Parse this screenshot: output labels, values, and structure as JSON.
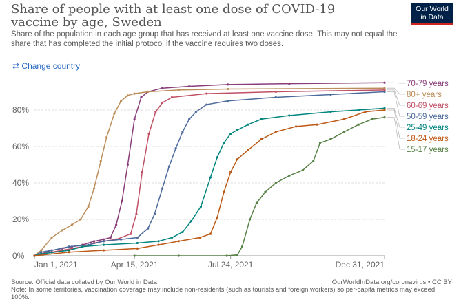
{
  "title": "Share of people with at least one dose of COVID-19 vaccine by age, Sweden",
  "subtitle": "Share of the population in each age group that has received at least one vaccine dose. This may not equal the share that has completed the initial protocol if the vaccine requires two doses.",
  "logo": [
    "Our World",
    "in Data"
  ],
  "change_country": "Change country",
  "change_icon": "swap-arrows-icon",
  "footer": {
    "source": "Source: Official data collated by Our World in Data",
    "url": "OurWorldInData.org/coronavirus • CC BY",
    "note": "Note: In some territories, vaccination coverage may include non-residents (such as tourists and foreign workers) so per-capita metrics may exceed 100%."
  },
  "chart_data": {
    "type": "line",
    "x_unit": "days since Jan 1, 2021",
    "xlim": [
      0,
      364
    ],
    "ylim": [
      0,
      100
    ],
    "x_ticks": [
      {
        "day": 0,
        "label": "Jan 1, 2021"
      },
      {
        "day": 104,
        "label": "Apr 15, 2021"
      },
      {
        "day": 204,
        "label": "Jul 24, 2021"
      },
      {
        "day": 364,
        "label": "Dec 31, 2021"
      }
    ],
    "y_ticks": [
      {
        "v": 0,
        "label": "0%"
      },
      {
        "v": 20,
        "label": "20%"
      },
      {
        "v": 40,
        "label": "40%"
      },
      {
        "v": 60,
        "label": "60%"
      },
      {
        "v": 80,
        "label": "80%"
      }
    ],
    "series": [
      {
        "name": "70-79 years",
        "color": "#883d7a",
        "points": [
          [
            0,
            0
          ],
          [
            7,
            1
          ],
          [
            18,
            3
          ],
          [
            29,
            4
          ],
          [
            39,
            5
          ],
          [
            50,
            6
          ],
          [
            62,
            8
          ],
          [
            72,
            9
          ],
          [
            79,
            10
          ],
          [
            85,
            17
          ],
          [
            91,
            30
          ],
          [
            97,
            50
          ],
          [
            104,
            75
          ],
          [
            111,
            87
          ],
          [
            118,
            90
          ],
          [
            133,
            92
          ],
          [
            161,
            93
          ],
          [
            201,
            94
          ],
          [
            265,
            94.5
          ],
          [
            364,
            95
          ]
        ]
      },
      {
        "name": "80+ years",
        "color": "#bc8e5a",
        "points": [
          [
            0,
            0
          ],
          [
            7,
            3
          ],
          [
            18,
            10
          ],
          [
            29,
            14
          ],
          [
            39,
            17
          ],
          [
            48,
            20
          ],
          [
            56,
            27
          ],
          [
            62,
            37
          ],
          [
            69,
            52
          ],
          [
            75,
            65
          ],
          [
            83,
            78
          ],
          [
            90,
            85
          ],
          [
            97,
            88
          ],
          [
            104,
            89
          ],
          [
            118,
            90
          ],
          [
            150,
            91
          ],
          [
            201,
            91.5
          ],
          [
            364,
            92
          ]
        ]
      },
      {
        "name": "60-69 years",
        "color": "#c15065",
        "points": [
          [
            0,
            0
          ],
          [
            7,
            1
          ],
          [
            18,
            2
          ],
          [
            29,
            3
          ],
          [
            39,
            4
          ],
          [
            50,
            5
          ],
          [
            62,
            7
          ],
          [
            72,
            8
          ],
          [
            85,
            9
          ],
          [
            100,
            12
          ],
          [
            106,
            23
          ],
          [
            112,
            46
          ],
          [
            119,
            67
          ],
          [
            126,
            79
          ],
          [
            133,
            84
          ],
          [
            143,
            87
          ],
          [
            179,
            89
          ],
          [
            251,
            90
          ],
          [
            364,
            91
          ]
        ]
      },
      {
        "name": "50-59 years",
        "color": "#4c6a9c",
        "points": [
          [
            0,
            0
          ],
          [
            7,
            2
          ],
          [
            18,
            3
          ],
          [
            36,
            5
          ],
          [
            56,
            6
          ],
          [
            72,
            8
          ],
          [
            90,
            9
          ],
          [
            107,
            10
          ],
          [
            118,
            15
          ],
          [
            125,
            23
          ],
          [
            133,
            37
          ],
          [
            140,
            49
          ],
          [
            147,
            59
          ],
          [
            154,
            68
          ],
          [
            161,
            75
          ],
          [
            168,
            79
          ],
          [
            179,
            83
          ],
          [
            201,
            85
          ],
          [
            251,
            87
          ],
          [
            308,
            88.5
          ],
          [
            364,
            90
          ]
        ]
      },
      {
        "name": "25-49 years",
        "color": "#00847e",
        "points": [
          [
            0,
            0
          ],
          [
            7,
            1
          ],
          [
            36,
            3
          ],
          [
            50,
            5
          ],
          [
            72,
            6
          ],
          [
            107,
            7
          ],
          [
            129,
            8
          ],
          [
            143,
            10
          ],
          [
            154,
            13
          ],
          [
            163,
            19
          ],
          [
            173,
            27
          ],
          [
            183,
            43
          ],
          [
            190,
            54
          ],
          [
            197,
            62
          ],
          [
            204,
            67
          ],
          [
            211,
            69
          ],
          [
            222,
            72
          ],
          [
            236,
            75
          ],
          [
            265,
            77
          ],
          [
            308,
            79
          ],
          [
            337,
            80
          ],
          [
            364,
            81
          ]
        ]
      },
      {
        "name": "18-24 years",
        "color": "#be5915",
        "points": [
          [
            0,
            0
          ],
          [
            36,
            2
          ],
          [
            72,
            3
          ],
          [
            107,
            4
          ],
          [
            129,
            6
          ],
          [
            150,
            8
          ],
          [
            172,
            10
          ],
          [
            183,
            12
          ],
          [
            190,
            21
          ],
          [
            197,
            35
          ],
          [
            204,
            46
          ],
          [
            211,
            53
          ],
          [
            222,
            58
          ],
          [
            236,
            64
          ],
          [
            251,
            68
          ],
          [
            272,
            71
          ],
          [
            294,
            72
          ],
          [
            322,
            75
          ],
          [
            344,
            79
          ],
          [
            364,
            80
          ]
        ]
      },
      {
        "name": "15-17 years",
        "color": "#578145",
        "points": [
          [
            104,
            0
          ],
          [
            150,
            0
          ],
          [
            200,
            0
          ],
          [
            211,
            0.5
          ],
          [
            216,
            5
          ],
          [
            224,
            20
          ],
          [
            231,
            29
          ],
          [
            240,
            35
          ],
          [
            251,
            40
          ],
          [
            265,
            44
          ],
          [
            279,
            47
          ],
          [
            290,
            52
          ],
          [
            297,
            62
          ],
          [
            308,
            64
          ],
          [
            322,
            68
          ],
          [
            337,
            72
          ],
          [
            351,
            75
          ],
          [
            364,
            76
          ]
        ]
      }
    ],
    "legend_order": [
      "70-79 years",
      "80+ years",
      "60-69 years",
      "50-59 years",
      "25-49 years",
      "18-24 years",
      "15-17 years"
    ],
    "legend_placement": "right"
  }
}
